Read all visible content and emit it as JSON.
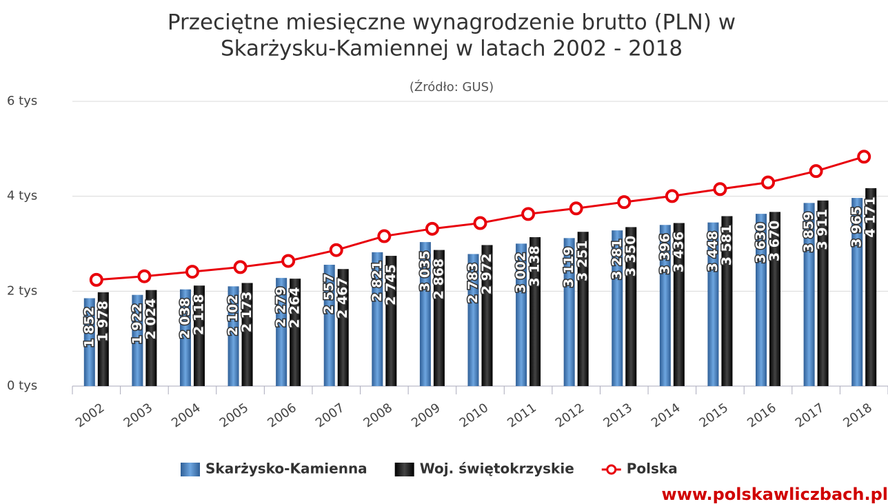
{
  "chart_data": {
    "type": "bar",
    "title": [
      "Przeciętne miesięczne wynagrodzenie brutto (PLN) w",
      "Skarżysku-Kamiennej w latach 2002 - 2018"
    ],
    "subtitle": "(Źródło: GUS)",
    "watermark": "www.polskawliczbach.pl",
    "categories": [
      "2002",
      "2003",
      "2004",
      "2005",
      "2006",
      "2007",
      "2008",
      "2009",
      "2010",
      "2011",
      "2012",
      "2013",
      "2014",
      "2015",
      "2016",
      "2017",
      "2018"
    ],
    "series": [
      {
        "name": "Skarżysko-Kamienna",
        "type": "bar",
        "color": "#4a86c8",
        "values": [
          1852,
          1922,
          2038,
          2102,
          2279,
          2557,
          2821,
          3035,
          2783,
          3002,
          3119,
          3281,
          3396,
          3448,
          3630,
          3859,
          3965
        ],
        "value_labels": [
          "1 852",
          "1 922",
          "2 038",
          "2 102",
          "2 279",
          "2 557",
          "2 821",
          "3 035",
          "2 783",
          "3 002",
          "3 119",
          "3 281",
          "3 396",
          "3 448",
          "3 630",
          "3 859",
          "3 965"
        ]
      },
      {
        "name": "Woj. świętokrzyskie",
        "type": "bar",
        "color": "#1e1e1e",
        "values": [
          1978,
          2024,
          2118,
          2173,
          2264,
          2467,
          2745,
          2868,
          2972,
          3138,
          3251,
          3350,
          3436,
          3581,
          3670,
          3911,
          4171
        ],
        "value_labels": [
          "1 978",
          "2 024",
          "2 118",
          "2 173",
          "2 264",
          "2 467",
          "2 745",
          "2 868",
          "2 972",
          "3 138",
          "3 251",
          "3 350",
          "3 436",
          "3 581",
          "3 670",
          "3 911",
          "4 171"
        ]
      },
      {
        "name": "Polska",
        "type": "line",
        "color": "#e8000b",
        "values": [
          2239,
          2314,
          2410,
          2507,
          2637,
          2866,
          3159,
          3315,
          3435,
          3626,
          3744,
          3877,
          4004,
          4151,
          4291,
          4530,
          4834
        ]
      }
    ],
    "ylim": [
      0,
      6000
    ],
    "yticks": [
      {
        "value": 0,
        "label": "0 tys"
      },
      {
        "value": 2000,
        "label": "2 tys"
      },
      {
        "value": 4000,
        "label": "4 tys"
      },
      {
        "value": 6000,
        "label": "6 tys"
      }
    ],
    "grid": true
  }
}
